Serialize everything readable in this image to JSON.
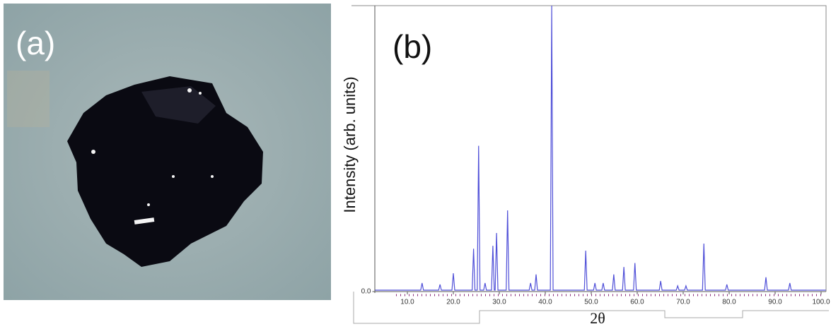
{
  "panel_a": {
    "label": "(a)"
  },
  "chart_data": {
    "type": "line",
    "panel_label": "(b)",
    "x_label": "2θ",
    "y_label": "Intensity (arb. units)",
    "color": "#5050d8",
    "x": [
      3,
      12.9,
      13.2,
      13.5,
      16.8,
      17.1,
      17.4,
      19.7,
      20,
      20.3,
      24.1,
      24.4,
      24.7,
      25.2,
      25.5,
      25.8,
      26.6,
      26.9,
      27.2,
      28.3,
      28.6,
      28.9,
      29.1,
      29.4,
      29.7,
      31.5,
      31.8,
      32.1,
      36.5,
      36.8,
      37.1,
      37.7,
      38,
      38.3,
      41.1,
      41.4,
      41.7,
      48.5,
      48.8,
      49.1,
      50.5,
      50.8,
      51.1,
      52.3,
      52.6,
      52.9,
      54.6,
      54.9,
      55.2,
      56.8,
      57.1,
      57.4,
      59.2,
      59.5,
      59.8,
      64.8,
      65.1,
      65.4,
      68.5,
      68.8,
      69.1,
      70.3,
      70.6,
      70.9,
      74.2,
      74.5,
      74.8,
      79.2,
      79.5,
      79.8,
      87.7,
      88,
      88.3,
      92.9,
      93.2,
      93.5,
      101
    ],
    "values": [
      0.5,
      0.5,
      3,
      0.5,
      0.5,
      2.5,
      0.5,
      0.5,
      6.4,
      0.5,
      0.5,
      15,
      0.5,
      0.5,
      51,
      0.5,
      0.5,
      3,
      0.5,
      0.5,
      16,
      0.5,
      0.5,
      20.5,
      0.5,
      0.5,
      28.4,
      0.5,
      0.5,
      3,
      0.5,
      0.5,
      6,
      0.5,
      0.5,
      100,
      0.5,
      0.5,
      14.3,
      0.5,
      0.5,
      3,
      0.5,
      0.5,
      3,
      0.5,
      0.5,
      6,
      0.5,
      0.5,
      8.6,
      0.5,
      0.5,
      10,
      0.5,
      0.5,
      3.7,
      0.5,
      0.5,
      2,
      0.5,
      0.5,
      2,
      0.5,
      0.5,
      16.8,
      0.5,
      0.5,
      2.5,
      0.5,
      0.5,
      5,
      0.5,
      0.5,
      3,
      0.5,
      0.5
    ],
    "xlim": [
      3,
      101
    ],
    "ylim": [
      0,
      100
    ],
    "xticks": [
      {
        "value": 10,
        "label": "10.0"
      },
      {
        "value": 20,
        "label": "20.0"
      },
      {
        "value": 30,
        "label": "30.0"
      },
      {
        "value": 40,
        "label": "40.0"
      },
      {
        "value": 50,
        "label": "50.0"
      },
      {
        "value": 60,
        "label": "60.0"
      },
      {
        "value": 70,
        "label": "70.0"
      },
      {
        "value": 80,
        "label": "80.0"
      },
      {
        "value": 90,
        "label": "90.0"
      },
      {
        "value": 100,
        "label": "100.0"
      }
    ],
    "yticks": [
      {
        "value": 0,
        "label": "0.0"
      }
    ]
  }
}
